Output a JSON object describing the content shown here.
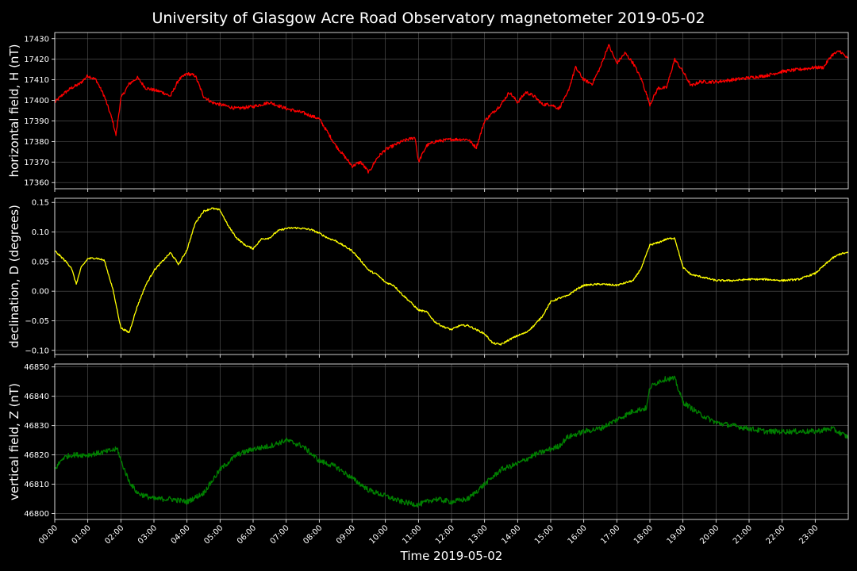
{
  "chart_data": {
    "type": "line",
    "title": "University of Glasgow Acre Road Observatory magnetometer 2019-05-02",
    "xlabel": "Time 2019-05-02",
    "x_ticks": [
      "00:00",
      "01:00",
      "02:00",
      "03:00",
      "04:00",
      "05:00",
      "06:00",
      "07:00",
      "08:00",
      "09:00",
      "10:00",
      "11:00",
      "12:00",
      "13:00",
      "14:00",
      "15:00",
      "16:00",
      "17:00",
      "18:00",
      "19:00",
      "20:00",
      "21:00",
      "22:00",
      "23:00"
    ],
    "xlim": [
      0,
      24
    ],
    "grid": true,
    "panels": [
      {
        "name": "H",
        "ylabel": "horizontal field, H (nT)",
        "ylim": [
          17357,
          17433
        ],
        "y_ticks": [
          17360,
          17370,
          17380,
          17390,
          17400,
          17410,
          17420,
          17430
        ],
        "y_tick_labels": [
          "17360",
          "17370",
          "17380",
          "17390",
          "17400",
          "17410",
          "17420",
          "17430"
        ],
        "color": "#ff0000",
        "noise": 0.8,
        "x": [
          0,
          0.25,
          0.5,
          0.75,
          1.0,
          1.25,
          1.5,
          1.75,
          1.85,
          2.0,
          2.25,
          2.5,
          2.75,
          3.0,
          3.25,
          3.5,
          3.75,
          4.0,
          4.25,
          4.5,
          4.75,
          5.0,
          5.5,
          6.0,
          6.5,
          7.0,
          7.5,
          8.0,
          8.5,
          9.0,
          9.25,
          9.5,
          9.75,
          10.0,
          10.5,
          10.9,
          11.0,
          11.25,
          11.5,
          12.0,
          12.5,
          12.75,
          13.0,
          13.5,
          13.75,
          14.0,
          14.25,
          14.5,
          14.75,
          15.0,
          15.25,
          15.5,
          15.75,
          16.0,
          16.25,
          16.5,
          16.75,
          17.0,
          17.25,
          17.5,
          17.75,
          18.0,
          18.25,
          18.5,
          18.75,
          19.0,
          19.25,
          19.5,
          20.0,
          20.5,
          21.0,
          21.5,
          22.0,
          22.5,
          23.0,
          23.25,
          23.5,
          23.75,
          24.0
        ],
        "y": [
          17399,
          17403,
          17406,
          17408,
          17412,
          17410,
          17402,
          17390,
          17383,
          17401,
          17408,
          17411,
          17406,
          17405,
          17404,
          17402,
          17410,
          17413,
          17412,
          17402,
          17399,
          17398,
          17396,
          17397,
          17399,
          17396,
          17394,
          17391,
          17378,
          17368,
          17370,
          17365,
          17372,
          17376,
          17380,
          17382,
          17370,
          17378,
          17380,
          17381,
          17381,
          17377,
          17390,
          17398,
          17404,
          17399,
          17404,
          17402,
          17398,
          17398,
          17396,
          17403,
          17416,
          17410,
          17408,
          17416,
          17427,
          17418,
          17423,
          17418,
          17410,
          17398,
          17406,
          17406,
          17420,
          17414,
          17407,
          17409,
          17409,
          17410,
          17411,
          17412,
          17414,
          17415,
          17416,
          17416,
          17422,
          17424,
          17420
        ]
      },
      {
        "name": "D",
        "ylabel": "declination, D (degrees)",
        "ylim": [
          -0.107,
          0.157
        ],
        "y_ticks": [
          -0.1,
          -0.05,
          0.0,
          0.05,
          0.1,
          0.15
        ],
        "y_tick_labels": [
          "−0.10",
          "−0.05",
          "0.00",
          "0.05",
          "0.10",
          "0.15"
        ],
        "color": "#ffff00",
        "noise": 0.0015,
        "x": [
          0,
          0.25,
          0.5,
          0.65,
          0.8,
          1.0,
          1.25,
          1.5,
          1.75,
          2.0,
          2.25,
          2.5,
          2.75,
          3.0,
          3.25,
          3.5,
          3.75,
          4.0,
          4.25,
          4.5,
          4.75,
          5.0,
          5.25,
          5.5,
          5.75,
          6.0,
          6.25,
          6.5,
          6.75,
          7.0,
          7.25,
          7.5,
          7.75,
          8.0,
          8.25,
          8.5,
          9.0,
          9.25,
          9.5,
          9.75,
          10.0,
          10.25,
          10.5,
          10.75,
          11.0,
          11.25,
          11.5,
          11.75,
          12.0,
          12.25,
          12.5,
          12.75,
          13.0,
          13.25,
          13.5,
          13.75,
          14.0,
          14.25,
          14.5,
          14.75,
          15.0,
          15.25,
          15.5,
          15.75,
          16.0,
          16.5,
          17.0,
          17.5,
          17.75,
          18.0,
          18.25,
          18.5,
          18.75,
          19.0,
          19.25,
          19.5,
          20.0,
          20.5,
          21.0,
          21.5,
          22.0,
          22.5,
          23.0,
          23.5,
          23.75,
          24.0
        ],
        "y": [
          0.068,
          0.055,
          0.04,
          0.012,
          0.04,
          0.055,
          0.056,
          0.052,
          0.005,
          -0.062,
          -0.07,
          -0.025,
          0.01,
          0.035,
          0.05,
          0.065,
          0.045,
          0.07,
          0.115,
          0.135,
          0.14,
          0.137,
          0.11,
          0.09,
          0.078,
          0.072,
          0.088,
          0.09,
          0.102,
          0.106,
          0.107,
          0.106,
          0.104,
          0.098,
          0.09,
          0.085,
          0.068,
          0.052,
          0.035,
          0.028,
          0.015,
          0.01,
          -0.005,
          -0.018,
          -0.032,
          -0.035,
          -0.052,
          -0.06,
          -0.065,
          -0.058,
          -0.058,
          -0.065,
          -0.072,
          -0.088,
          -0.09,
          -0.082,
          -0.075,
          -0.07,
          -0.058,
          -0.042,
          -0.018,
          -0.012,
          -0.008,
          0.002,
          0.01,
          0.012,
          0.01,
          0.018,
          0.04,
          0.078,
          0.082,
          0.088,
          0.09,
          0.04,
          0.028,
          0.025,
          0.018,
          0.018,
          0.02,
          0.02,
          0.018,
          0.02,
          0.03,
          0.055,
          0.063,
          0.065
        ]
      },
      {
        "name": "Z",
        "ylabel": "vertical field, Z (nT)",
        "ylim": [
          46798,
          46851
        ],
        "y_ticks": [
          46800,
          46810,
          46820,
          46830,
          46840,
          46850
        ],
        "y_tick_labels": [
          "46800",
          "46810",
          "46820",
          "46830",
          "46840",
          "46850"
        ],
        "color": "#008000",
        "noise": 0.9,
        "x": [
          0,
          0.25,
          0.5,
          1.0,
          1.5,
          1.9,
          2.0,
          2.25,
          2.5,
          2.75,
          3.0,
          3.5,
          4.0,
          4.5,
          5.0,
          5.5,
          6.0,
          6.5,
          7.0,
          7.5,
          8.0,
          8.5,
          9.0,
          9.5,
          10.0,
          10.5,
          11.0,
          11.5,
          12.0,
          12.5,
          13.0,
          13.5,
          14.0,
          14.5,
          15.0,
          15.25,
          15.5,
          16.0,
          16.5,
          17.0,
          17.5,
          17.9,
          18.0,
          18.25,
          18.5,
          18.75,
          19.0,
          19.25,
          19.5,
          20.0,
          20.5,
          21.0,
          21.5,
          22.0,
          22.5,
          23.0,
          23.5,
          24.0
        ],
        "y": [
          46815,
          46819,
          46820,
          46820,
          46821,
          46822,
          46818,
          46811,
          46807,
          46806,
          46805,
          46805,
          46804,
          46807,
          46815,
          46820,
          46822,
          46823,
          46825,
          46823,
          46818,
          46816,
          46812,
          46808,
          46806,
          46804,
          46803,
          46805,
          46804,
          46805,
          46810,
          46815,
          46817,
          46820,
          46822,
          46823,
          46826,
          46828,
          46829,
          46832,
          46835,
          46836,
          46843,
          46845,
          46846,
          46846,
          46838,
          46836,
          46834,
          46831,
          46830,
          46829,
          46828,
          46828,
          46828,
          46828,
          46829,
          46826
        ]
      }
    ]
  }
}
